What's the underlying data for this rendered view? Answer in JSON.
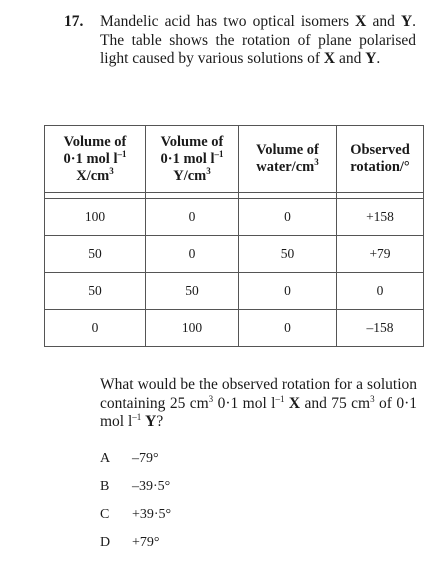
{
  "question": {
    "number": "17.",
    "stem_a": "Mandelic acid has two optical isomers",
    "x": "X",
    "and": "and",
    "y": "Y",
    "stem_b": ". The table shows the rotation of plane polarised light caused by various solutions of",
    "stem_end": "."
  },
  "table": {
    "headers": [
      {
        "line1": "Volume of",
        "line2a": "0·1 mol l",
        "sup": "–1",
        "line3": "X/cm",
        "sup3": "3"
      },
      {
        "line1": "Volume of",
        "line2a": "0·1 mol l",
        "sup": "–1",
        "line3": "Y/cm",
        "sup3": "3"
      },
      {
        "line1": "Volume of",
        "line2a": "water/cm",
        "sup": "3"
      },
      {
        "line1": "Observed",
        "line2a": "rotation/°"
      }
    ],
    "rows": [
      [
        "100",
        "0",
        "0",
        "+158"
      ],
      [
        "50",
        "0",
        "50",
        "+79"
      ],
      [
        "50",
        "50",
        "0",
        "0"
      ],
      [
        "0",
        "100",
        "0",
        "–158"
      ]
    ]
  },
  "question2": {
    "a": "What would be the observed rotation for a solution containing 25 cm",
    "b": " 0·1 mol l",
    "c": " ",
    "x": "X",
    "d": " and 75 cm",
    "e": " of 0·1 mol l",
    "y": "Y",
    "f": "?",
    "sup3": "3",
    "supm1": "–1"
  },
  "options": [
    {
      "letter": "A",
      "text": "–79°"
    },
    {
      "letter": "B",
      "text": "–39·5°"
    },
    {
      "letter": "C",
      "text": "+39·5°"
    },
    {
      "letter": "D",
      "text": "+79°"
    }
  ]
}
